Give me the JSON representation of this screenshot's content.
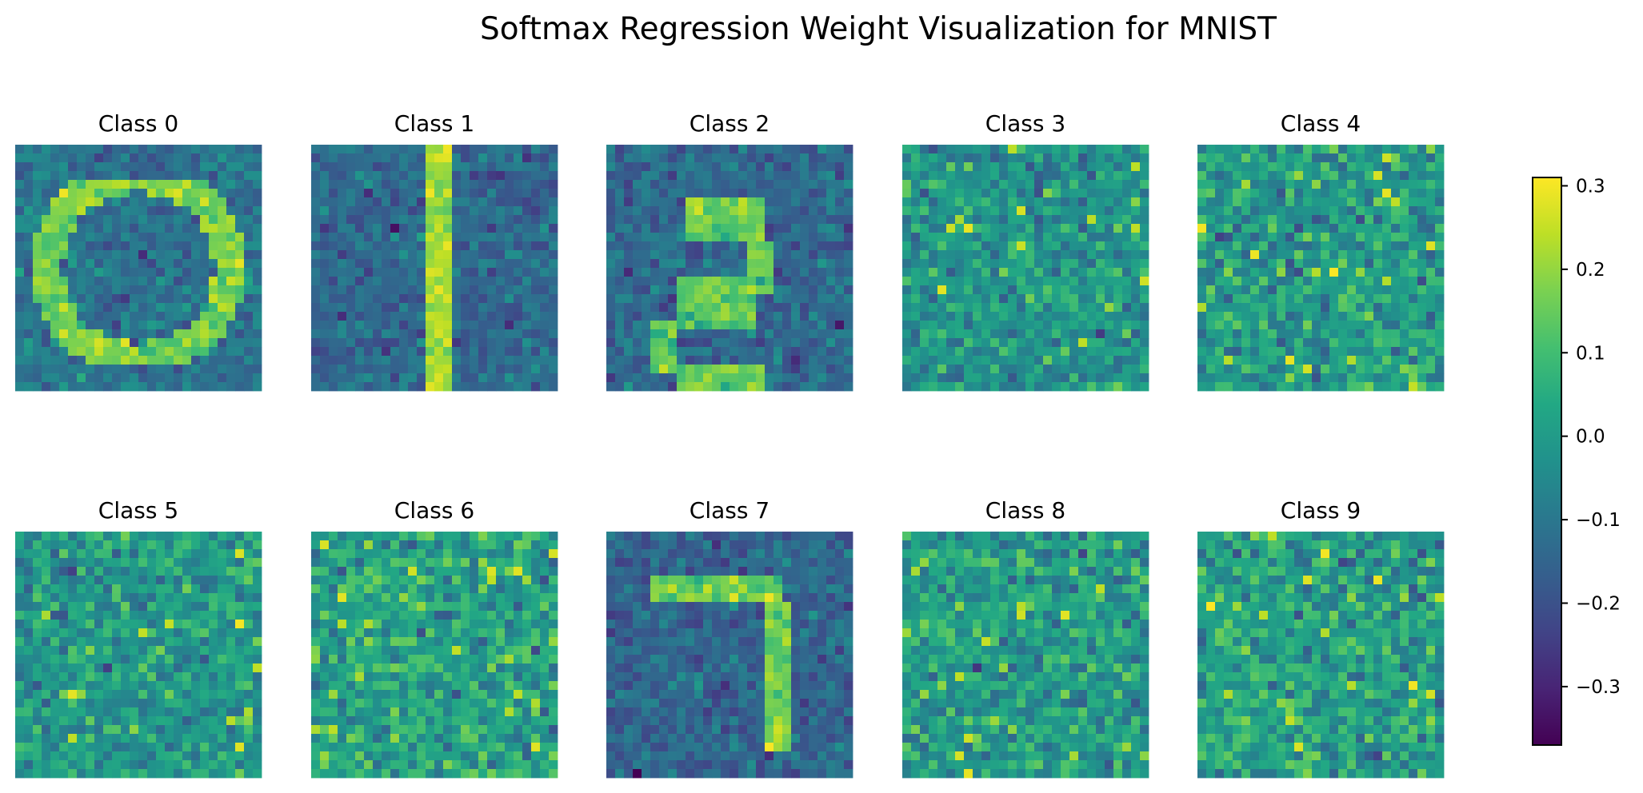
{
  "chart_data": {
    "type": "heatmap",
    "title": "Softmax Regression Weight Visualization for MNIST",
    "grid_size": [
      28,
      28
    ],
    "colormap": "viridis",
    "vmin": -0.37,
    "vmax": 0.31,
    "panels": [
      {
        "label": "Class 0",
        "background_mean": -0.11,
        "background_std": 0.05,
        "stroke_mean": 0.17,
        "stroke_std": 0.05,
        "pattern": "ring"
      },
      {
        "label": "Class 1",
        "background_mean": -0.14,
        "background_std": 0.05,
        "stroke_mean": 0.22,
        "stroke_std": 0.04,
        "pattern": "vertical-bar"
      },
      {
        "label": "Class 2",
        "background_mean": -0.14,
        "background_std": 0.05,
        "stroke_mean": 0.15,
        "stroke_std": 0.05,
        "pattern": "two"
      },
      {
        "label": "Class 3",
        "background_mean": -0.02,
        "background_std": 0.07,
        "stroke_mean": 0.0,
        "stroke_std": 0.0,
        "pattern": "noise"
      },
      {
        "label": "Class 4",
        "background_mean": 0.0,
        "background_std": 0.08,
        "stroke_mean": 0.0,
        "stroke_std": 0.0,
        "pattern": "noise"
      },
      {
        "label": "Class 5",
        "background_mean": -0.01,
        "background_std": 0.075,
        "stroke_mean": 0.0,
        "stroke_std": 0.0,
        "pattern": "noise"
      },
      {
        "label": "Class 6",
        "background_mean": 0.02,
        "background_std": 0.08,
        "stroke_mean": 0.0,
        "stroke_std": 0.0,
        "pattern": "noise"
      },
      {
        "label": "Class 7",
        "background_mean": -0.15,
        "background_std": 0.05,
        "stroke_mean": 0.17,
        "stroke_std": 0.05,
        "pattern": "seven"
      },
      {
        "label": "Class 8",
        "background_mean": 0.0,
        "background_std": 0.08,
        "stroke_mean": 0.0,
        "stroke_std": 0.0,
        "pattern": "noise"
      },
      {
        "label": "Class 9",
        "background_mean": 0.01,
        "background_std": 0.08,
        "stroke_mean": 0.0,
        "stroke_std": 0.0,
        "pattern": "noise"
      }
    ],
    "colorbar": {
      "ticks": [
        0.3,
        0.2,
        0.1,
        0.0,
        -0.1,
        -0.2,
        -0.3
      ],
      "tick_labels": [
        "0.3",
        "0.2",
        "0.1",
        "0.0",
        "−0.1",
        "−0.2",
        "−0.3"
      ]
    }
  }
}
